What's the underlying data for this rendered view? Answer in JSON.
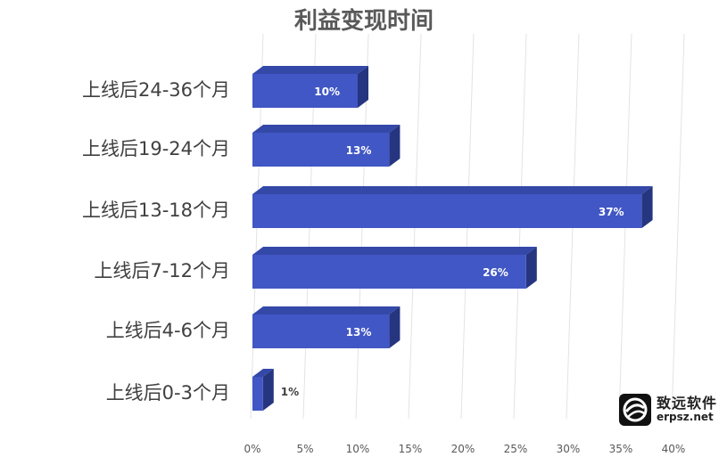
{
  "chart_data": {
    "type": "bar",
    "orientation": "horizontal",
    "title": "利益变现时间",
    "categories": [
      "上线后24-36个月",
      "上线后19-24个月",
      "上线后13-18个月",
      "上线后7-12个月",
      "上线后4-6个月",
      "上线后0-3个月"
    ],
    "values": [
      10,
      13,
      37,
      26,
      13,
      1
    ],
    "data_labels": [
      "10%",
      "13%",
      "37%",
      "26%",
      "13%",
      "1%"
    ],
    "xlim": [
      0,
      40
    ],
    "x_ticks": [
      "0%",
      "5%",
      "10%",
      "15%",
      "20%",
      "25%",
      "30%",
      "35%",
      "40%"
    ],
    "grid": true,
    "style_3d": true,
    "bar_color": "#4157c5",
    "bar_top_color": "#3448a8",
    "bar_side_color": "#26357f"
  },
  "watermark": {
    "name": "致远软件",
    "url": "erpsz.net"
  }
}
